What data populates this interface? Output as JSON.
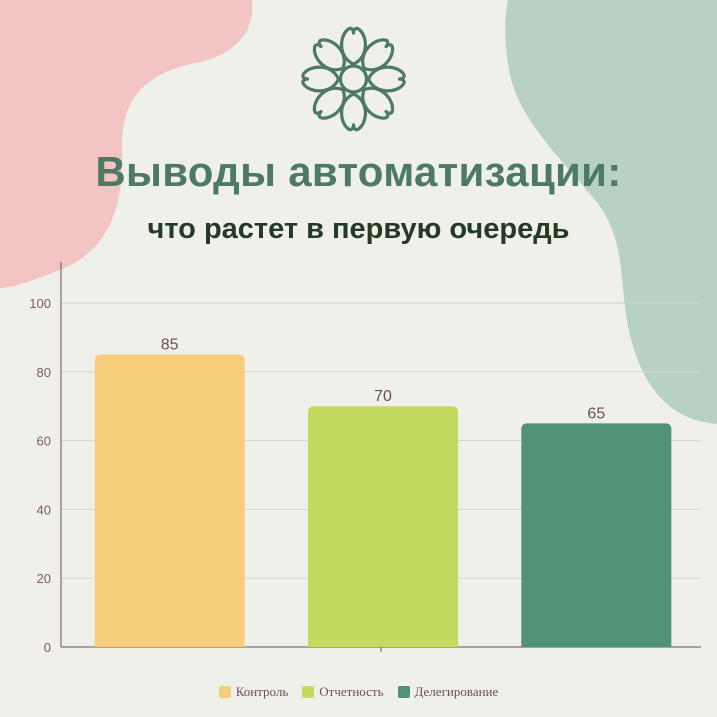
{
  "title": "Выводы автоматизации:",
  "subtitle": "что растет в первую очередь",
  "icons": {
    "top": "flower-icon"
  },
  "colors": {
    "background": "#f0f0ea",
    "pink_blob": "#f2c4c4",
    "green_blob": "#b7d1c3",
    "title": "#4d7a63",
    "subtitle": "#243a24"
  },
  "chart_data": {
    "type": "bar",
    "categories": [
      "Контроль",
      "Отчетность",
      "Делегирование"
    ],
    "values": [
      85,
      70,
      65
    ],
    "colors": [
      "#f8cd7a",
      "#c2db5f",
      "#519174"
    ],
    "title": "",
    "xlabel": "",
    "ylabel": "",
    "ylim": [
      0,
      100
    ],
    "yticks": [
      0,
      20,
      40,
      60,
      80,
      100
    ],
    "grid": true,
    "legend": "bottom"
  }
}
